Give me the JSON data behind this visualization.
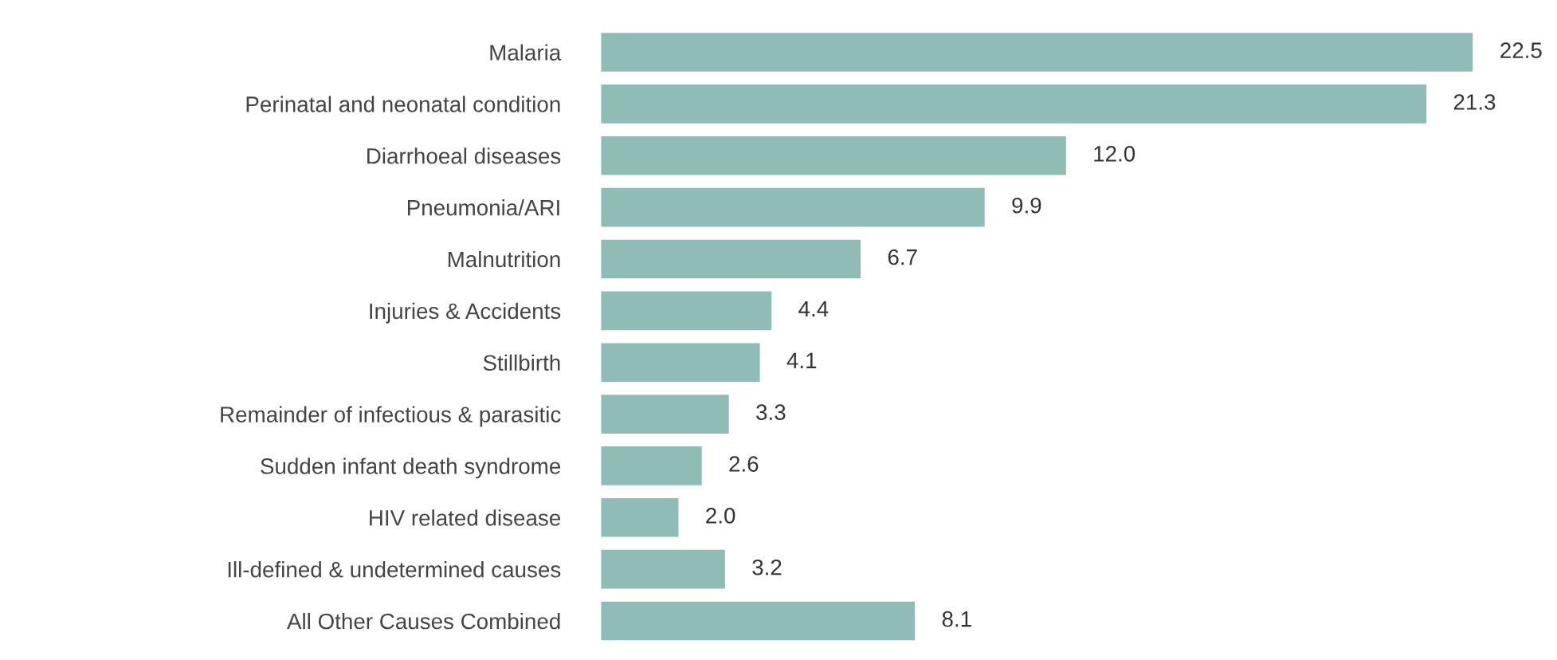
{
  "chart_data": {
    "type": "bar",
    "orientation": "horizontal",
    "categories": [
      "Malaria",
      "Perinatal and neonatal condition",
      "Diarrhoeal diseases",
      "Pneumonia/ARI",
      "Malnutrition",
      "Injuries & Accidents",
      "Stillbirth",
      "Remainder of infectious & parasitic",
      "Sudden infant death syndrome",
      "HIV related disease",
      "Ill-defined & undetermined causes",
      "All Other Causes Combined"
    ],
    "values": [
      22.5,
      21.3,
      12.0,
      9.9,
      6.7,
      4.4,
      4.1,
      3.3,
      2.6,
      2.0,
      3.2,
      8.1
    ],
    "value_labels": [
      "22.5",
      "21.3",
      "12.0",
      "9.9",
      "6.7",
      "4.4",
      "4.1",
      "3.3",
      "2.6",
      "2.0",
      "3.2",
      "8.1"
    ],
    "color": "#8fbcb5",
    "grid": false,
    "legend": false
  }
}
